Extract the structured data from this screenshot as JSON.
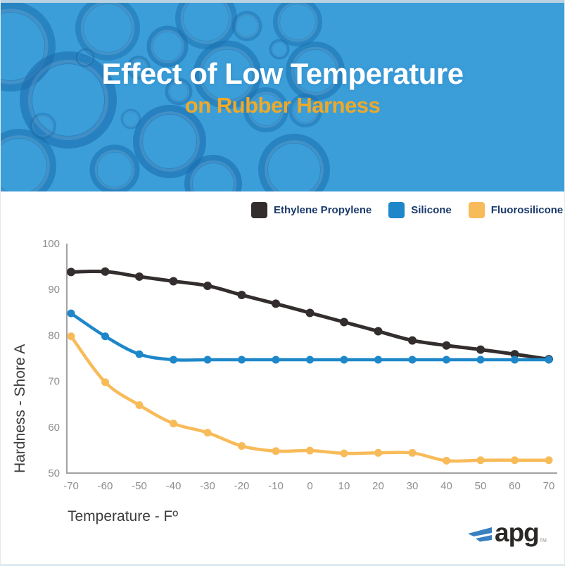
{
  "header": {
    "title": "Effect of Low Temperature",
    "subtitle": "on Rubber Harness"
  },
  "legend": [
    {
      "label": "Ethylene Propylene",
      "color": "#332e2d"
    },
    {
      "label": "Silicone",
      "color": "#1e87c9"
    },
    {
      "label": "Fluorosilicone",
      "color": "#f8bb59"
    }
  ],
  "chart_data": {
    "type": "line",
    "title": "Effect of Low Temperature on Rubber Harness",
    "categories": [
      -70,
      -60,
      -50,
      -40,
      -30,
      -20,
      -10,
      0,
      10,
      20,
      30,
      40,
      50,
      60,
      70
    ],
    "series": [
      {
        "name": "Ethylene Propylene",
        "color": "#332e2d",
        "values": [
          93.8,
          93.9,
          92.8,
          91.8,
          90.8,
          88.8,
          86.9,
          84.9,
          82.9,
          80.9,
          78.9,
          77.8,
          76.9,
          75.9,
          74.8
        ]
      },
      {
        "name": "Silicone",
        "color": "#1e87c9",
        "values": [
          84.8,
          79.8,
          75.9,
          74.7,
          74.7,
          74.7,
          74.7,
          74.7,
          74.7,
          74.7,
          74.7,
          74.7,
          74.7,
          74.7,
          74.7
        ]
      },
      {
        "name": "Fluorosilicone",
        "color": "#f8bb59",
        "values": [
          79.8,
          69.8,
          64.8,
          60.8,
          58.8,
          55.9,
          54.8,
          54.9,
          54.3,
          54.4,
          54.4,
          52.7,
          52.8,
          52.8,
          52.8
        ]
      }
    ],
    "xlabel": "Temperature - Fº",
    "ylabel": "Hardness - Shore A",
    "ylim": [
      50,
      100
    ],
    "yticks": [
      50,
      60,
      70,
      80,
      90,
      100
    ],
    "grid": false,
    "legend_position": "top-right"
  },
  "logo": {
    "text": "apg",
    "tm": "TM"
  },
  "colors": {
    "banner_background": "#3b9ed9",
    "banner_ring": "#1a6dad",
    "top_strip": "#b9d3e3",
    "title_text": "#ffffff",
    "subtitle_text": "#efa928",
    "legend_text": "#1b3a6b",
    "axis_line": "#a3a3a3",
    "tick_text": "#8e8e8e",
    "axis_title_text": "#3b3b3b",
    "logo_text": "#2b2826",
    "logo_wing": "#3a80c0"
  }
}
